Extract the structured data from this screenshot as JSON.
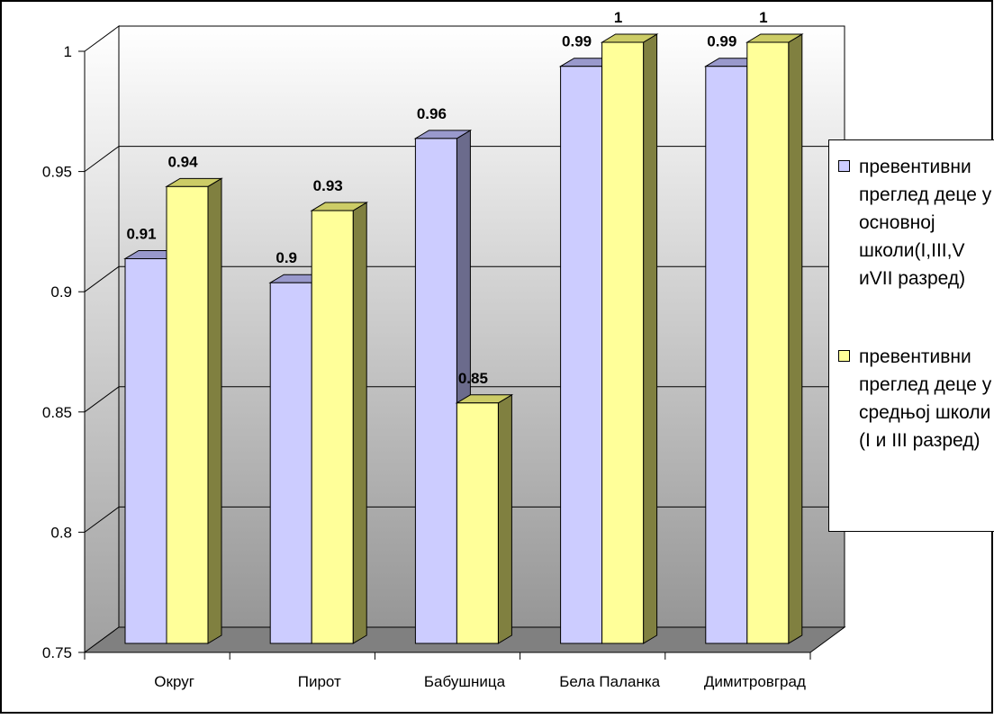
{
  "chart_data": {
    "type": "bar",
    "categories": [
      "Округ",
      "Пирот",
      "Бабушница",
      "Бела Паланка",
      "Димитровград"
    ],
    "series": [
      {
        "name": "превентивни преглед деце у основној школи(I,III,V иVII разред)",
        "values": [
          0.91,
          0.9,
          0.96,
          0.99,
          0.99
        ],
        "labels": [
          "0.91",
          "0.9",
          "0.96",
          "0.99",
          "0.99"
        ],
        "color": "#ccccff",
        "side_color": "#6b6b8c",
        "top_color": "#9999cc"
      },
      {
        "name": "превентивни преглед деце у средњој школи (I и III разред)",
        "values": [
          0.94,
          0.93,
          0.85,
          1,
          1
        ],
        "labels": [
          "0.94",
          "0.93",
          "0.85",
          "1",
          "1"
        ],
        "color": "#ffff99",
        "side_color": "#808040",
        "top_color": "#cccc66"
      }
    ],
    "y_ticks": [
      "0.75",
      "0.8",
      "0.85",
      "0.9",
      "0.95",
      "1"
    ],
    "ylim": [
      0.75,
      1
    ],
    "grid": true,
    "legend_position": "right",
    "title": "",
    "xlabel": "",
    "ylabel": ""
  }
}
